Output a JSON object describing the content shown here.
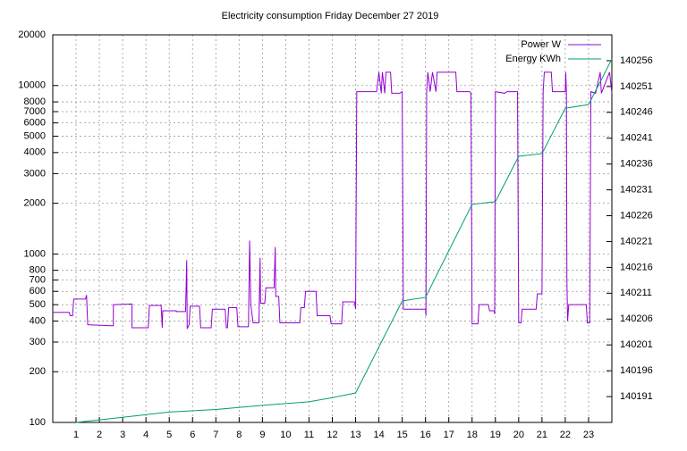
{
  "chart_data": {
    "type": "line",
    "title": "Electricity consumption Friday December 27 2019",
    "xlim": [
      0,
      24
    ],
    "xticks": [
      1,
      2,
      3,
      4,
      5,
      6,
      7,
      8,
      9,
      10,
      11,
      12,
      13,
      14,
      15,
      16,
      17,
      18,
      19,
      20,
      21,
      22,
      23
    ],
    "ylim": [
      100,
      20000
    ],
    "yscale": "log",
    "yticks": [
      100,
      200,
      300,
      400,
      500,
      600,
      700,
      800,
      1000,
      2000,
      3000,
      4000,
      5000,
      6000,
      7000,
      8000,
      10000,
      20000
    ],
    "y2lim": [
      140186,
      140261
    ],
    "y2ticks": [
      140191,
      140196,
      140201,
      140206,
      140211,
      140216,
      140221,
      140226,
      140231,
      140236,
      140241,
      140246,
      140251,
      140256
    ],
    "grid": true,
    "legend": "top-right",
    "series": [
      {
        "name": "Power W",
        "color": "#9400d3",
        "x": [
          0,
          0.7,
          0.75,
          0.85,
          0.9,
          1.4,
          1.45,
          1.5,
          2.5,
          2.6,
          2.6,
          3.4,
          3.4,
          4.1,
          4.15,
          4.65,
          4.7,
          4.72,
          5.3,
          5.3,
          5.7,
          5.75,
          5.77,
          5.85,
          5.9,
          6.3,
          6.35,
          6.8,
          6.85,
          7.4,
          7.45,
          7.5,
          7.55,
          7.9,
          7.95,
          8.4,
          8.45,
          8.5,
          8.6,
          8.85,
          8.9,
          8.92,
          9.1,
          9.15,
          9.5,
          9.55,
          9.57,
          9.7,
          9.75,
          10.6,
          10.65,
          10.8,
          10.85,
          11.3,
          11.35,
          11.9,
          11.95,
          12.4,
          12.45,
          12.95,
          13.0,
          13.05,
          13.9,
          14.0,
          14.1,
          14.15,
          14.25,
          14.3,
          14.5,
          14.55,
          14.9,
          15.0,
          15.05,
          16.0,
          16.02,
          16.05,
          16.1,
          16.2,
          16.3,
          16.45,
          16.5,
          17.3,
          17.35,
          17.9,
          17.95,
          18.0,
          18.25,
          18.3,
          18.7,
          18.75,
          18.95,
          18.97,
          19.0,
          19.4,
          19.5,
          19.95,
          20.0,
          20.1,
          20.15,
          20.75,
          20.8,
          21.0,
          21.05,
          21.1,
          21.4,
          21.45,
          22.0,
          22.02,
          22.05,
          22.07,
          22.1,
          22.15,
          22.9,
          22.95,
          23.05,
          23.1,
          23.3,
          23.5,
          23.55,
          23.9,
          24
        ],
        "values": [
          450,
          450,
          430,
          430,
          540,
          540,
          570,
          380,
          375,
          375,
          500,
          505,
          365,
          365,
          495,
          495,
          365,
          460,
          460,
          455,
          455,
          920,
          360,
          380,
          490,
          490,
          365,
          365,
          470,
          470,
          365,
          365,
          480,
          480,
          370,
          370,
          1200,
          500,
          390,
          390,
          950,
          510,
          510,
          630,
          630,
          1100,
          560,
          560,
          390,
          390,
          480,
          480,
          600,
          600,
          430,
          430,
          385,
          385,
          520,
          520,
          470,
          9200,
          9200,
          12000,
          9000,
          12000,
          9000,
          12000,
          12000,
          9000,
          9000,
          9200,
          470,
          470,
          430,
          9200,
          12000,
          9200,
          12000,
          9200,
          12000,
          12000,
          9200,
          9200,
          9000,
          385,
          385,
          500,
          500,
          460,
          460,
          440,
          9200,
          9000,
          9200,
          9200,
          390,
          390,
          470,
          470,
          580,
          580,
          9200,
          12000,
          12000,
          9200,
          9200,
          12000,
          9000,
          700,
          400,
          500,
          500,
          390,
          390,
          9200,
          9000,
          12000,
          9000,
          12000,
          9000
        ]
      },
      {
        "name": "Energy KWh",
        "color": "#009e73",
        "axis": "y2",
        "x": [
          1,
          3,
          5,
          7,
          9,
          11,
          12,
          13,
          15,
          16,
          18,
          19,
          20,
          21,
          22,
          23,
          24
        ],
        "values": [
          140186,
          140187,
          140188,
          140188.5,
          140189.3,
          140190,
          140190.8,
          140191.7,
          140209.5,
          140210.2,
          140228.2,
          140228.7,
          140237.5,
          140238,
          140246.8,
          140247.5,
          140256.3
        ]
      }
    ]
  }
}
